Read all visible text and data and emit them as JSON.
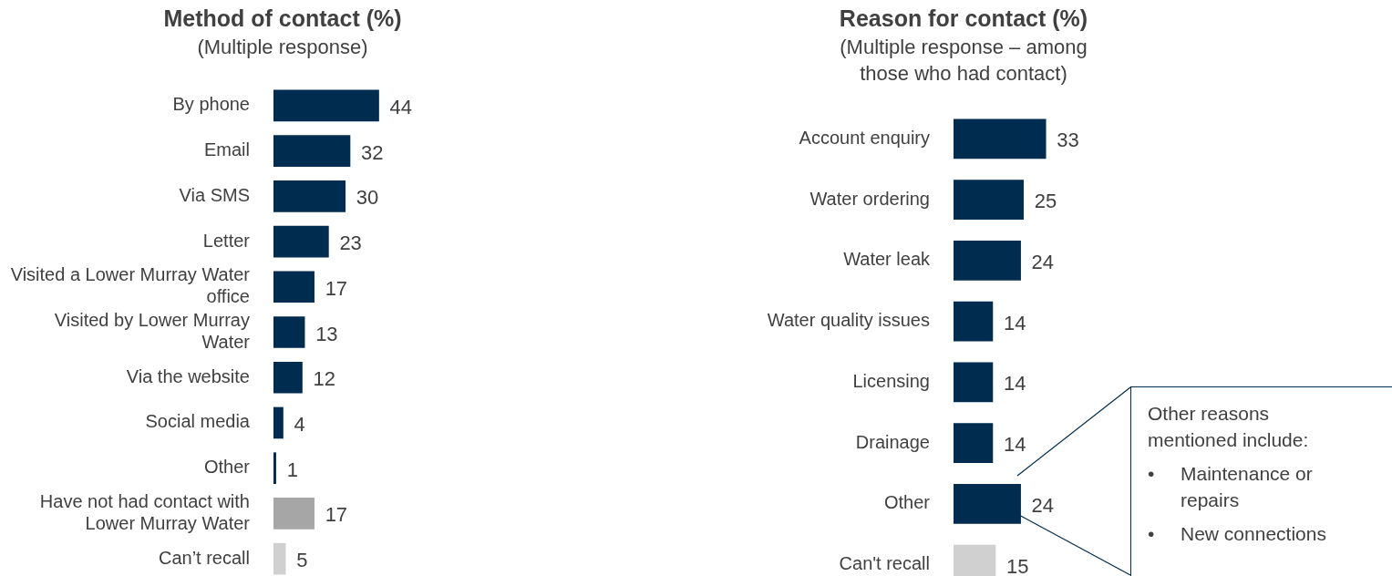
{
  "chart_data": [
    {
      "type": "bar",
      "orientation": "horizontal",
      "title": "Method of contact (%)",
      "subtitle": "(Multiple response)",
      "categories": [
        "By phone",
        "Email",
        "Via SMS",
        "Letter",
        "Visited a Lower Murray Water office",
        "Visited by Lower Murray Water",
        "Via the website",
        "Social media",
        "Other",
        "Have not had contact with Lower Murray Water",
        "Can’t recall"
      ],
      "values": [
        44,
        32,
        30,
        23,
        17,
        13,
        12,
        4,
        1,
        17,
        5
      ],
      "colors": [
        "#002d4f",
        "#002d4f",
        "#002d4f",
        "#002d4f",
        "#002d4f",
        "#002d4f",
        "#002d4f",
        "#002d4f",
        "#002d4f",
        "#a6a6a6",
        "#d0d0d0"
      ],
      "data_labels": true
    },
    {
      "type": "bar",
      "orientation": "horizontal",
      "title": "Reason for contact (%)",
      "subtitle": "(Multiple response – among those who had contact)",
      "categories": [
        "Account enquiry",
        "Water ordering",
        "Water leak",
        "Water quality issues",
        "Licensing",
        "Drainage",
        "Other",
        "Can't recall"
      ],
      "values": [
        33,
        25,
        24,
        14,
        14,
        14,
        24,
        15
      ],
      "colors": [
        "#002d4f",
        "#002d4f",
        "#002d4f",
        "#002d4f",
        "#002d4f",
        "#002d4f",
        "#002d4f",
        "#d0d0d0"
      ],
      "data_labels": true,
      "annotations": [
        "Other reasons mentioned include:",
        "•\tMaintenance or repairs",
        "•\tNew connections"
      ]
    }
  ]
}
